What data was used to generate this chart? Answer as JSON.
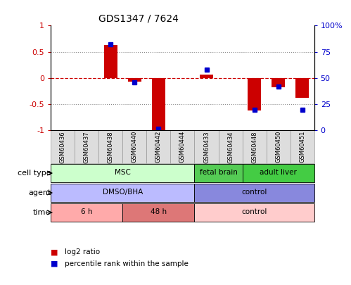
{
  "title": "GDS1347 / 7624",
  "samples": [
    "GSM60436",
    "GSM60437",
    "GSM60438",
    "GSM60440",
    "GSM60442",
    "GSM60444",
    "GSM60433",
    "GSM60434",
    "GSM60448",
    "GSM60450",
    "GSM60451"
  ],
  "log2_ratio": [
    0.0,
    0.0,
    0.63,
    -0.07,
    -1.0,
    0.0,
    0.07,
    0.0,
    -0.62,
    -0.18,
    -0.38
  ],
  "percentile_rank": [
    null,
    null,
    82,
    46,
    2,
    null,
    58,
    null,
    20,
    42,
    20
  ],
  "ylim": [
    -1.0,
    1.0
  ],
  "right_ylim": [
    0,
    100
  ],
  "right_yticks": [
    0,
    25,
    50,
    75,
    100
  ],
  "right_yticklabels": [
    "0",
    "25",
    "50",
    "75",
    "100%"
  ],
  "left_yticks": [
    -1.0,
    -0.5,
    0.0,
    0.5,
    1.0
  ],
  "left_yticklabels": [
    "-1",
    "-0.5",
    "0",
    "0.5",
    "1"
  ],
  "bar_color": "#cc0000",
  "dot_color": "#0000cc",
  "zero_line_color": "#cc0000",
  "dotted_line_color": "#888888",
  "cell_type_groups": [
    {
      "label": "MSC",
      "start": 0,
      "end": 5,
      "color": "#ccffcc"
    },
    {
      "label": "fetal brain",
      "start": 6,
      "end": 7,
      "color": "#55cc55"
    },
    {
      "label": "adult liver",
      "start": 8,
      "end": 10,
      "color": "#44cc44"
    }
  ],
  "agent_groups": [
    {
      "label": "DMSO/BHA",
      "start": 0,
      "end": 5,
      "color": "#bbbbff"
    },
    {
      "label": "control",
      "start": 6,
      "end": 10,
      "color": "#8888dd"
    }
  ],
  "time_groups": [
    {
      "label": "6 h",
      "start": 0,
      "end": 2,
      "color": "#ffaaaa"
    },
    {
      "label": "48 h",
      "start": 3,
      "end": 5,
      "color": "#dd7777"
    },
    {
      "label": "control",
      "start": 6,
      "end": 10,
      "color": "#ffcccc"
    }
  ],
  "row_labels": [
    "cell type",
    "agent",
    "time"
  ],
  "legend_items": [
    {
      "label": "log2 ratio",
      "color": "#cc0000"
    },
    {
      "label": "percentile rank within the sample",
      "color": "#0000cc"
    }
  ],
  "sample_box_color": "#dddddd",
  "sample_box_edge": "#999999"
}
